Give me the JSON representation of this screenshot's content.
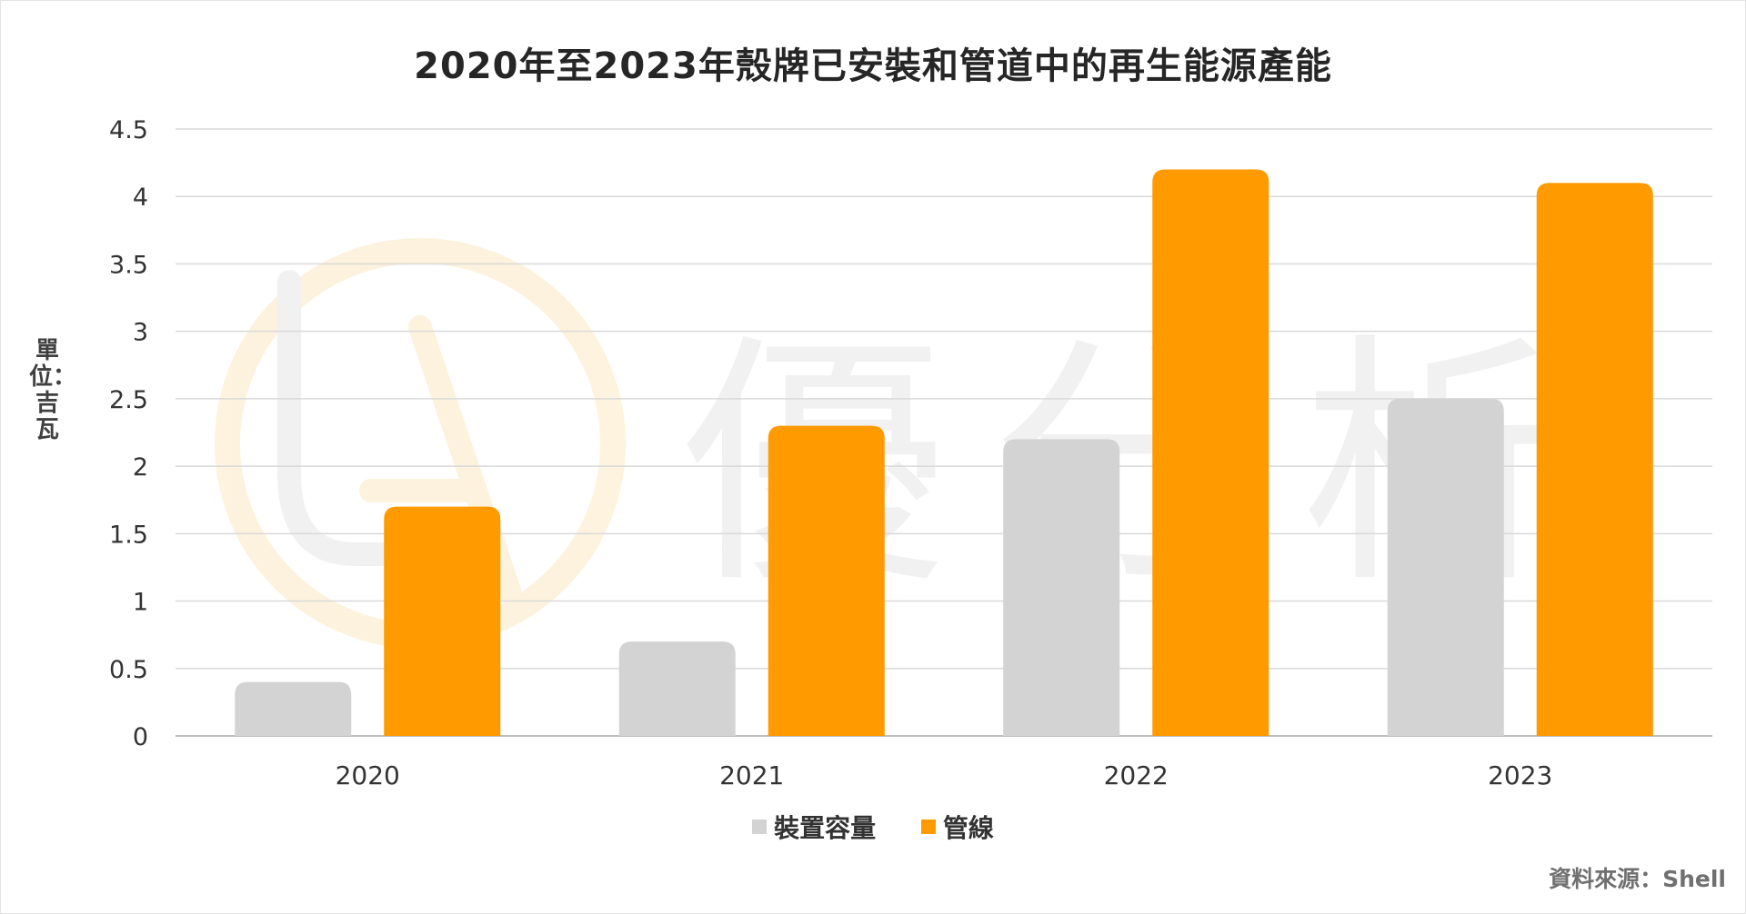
{
  "chart_data": {
    "type": "bar",
    "title": "2020年至2023年殼牌已安裝和管道中的再生能源產能",
    "ylabel": "單位：吉瓦",
    "xlabel": "",
    "categories": [
      "2020",
      "2021",
      "2022",
      "2023"
    ],
    "series": [
      {
        "name": "裝置容量",
        "values": [
          0.4,
          0.7,
          2.2,
          2.5
        ],
        "color": "#d3d3d3"
      },
      {
        "name": "管線",
        "values": [
          1.7,
          2.3,
          4.2,
          4.1
        ],
        "color": "#ff9a00"
      }
    ],
    "ylim": [
      0,
      4.5
    ],
    "yticks": [
      "0",
      "0.5",
      "1",
      "1.5",
      "2",
      "2.5",
      "3",
      "3.5",
      "4",
      "4.5"
    ],
    "grid": true,
    "legend_position": "bottom"
  },
  "source": "資料來源：Shell",
  "watermark": "優分析"
}
